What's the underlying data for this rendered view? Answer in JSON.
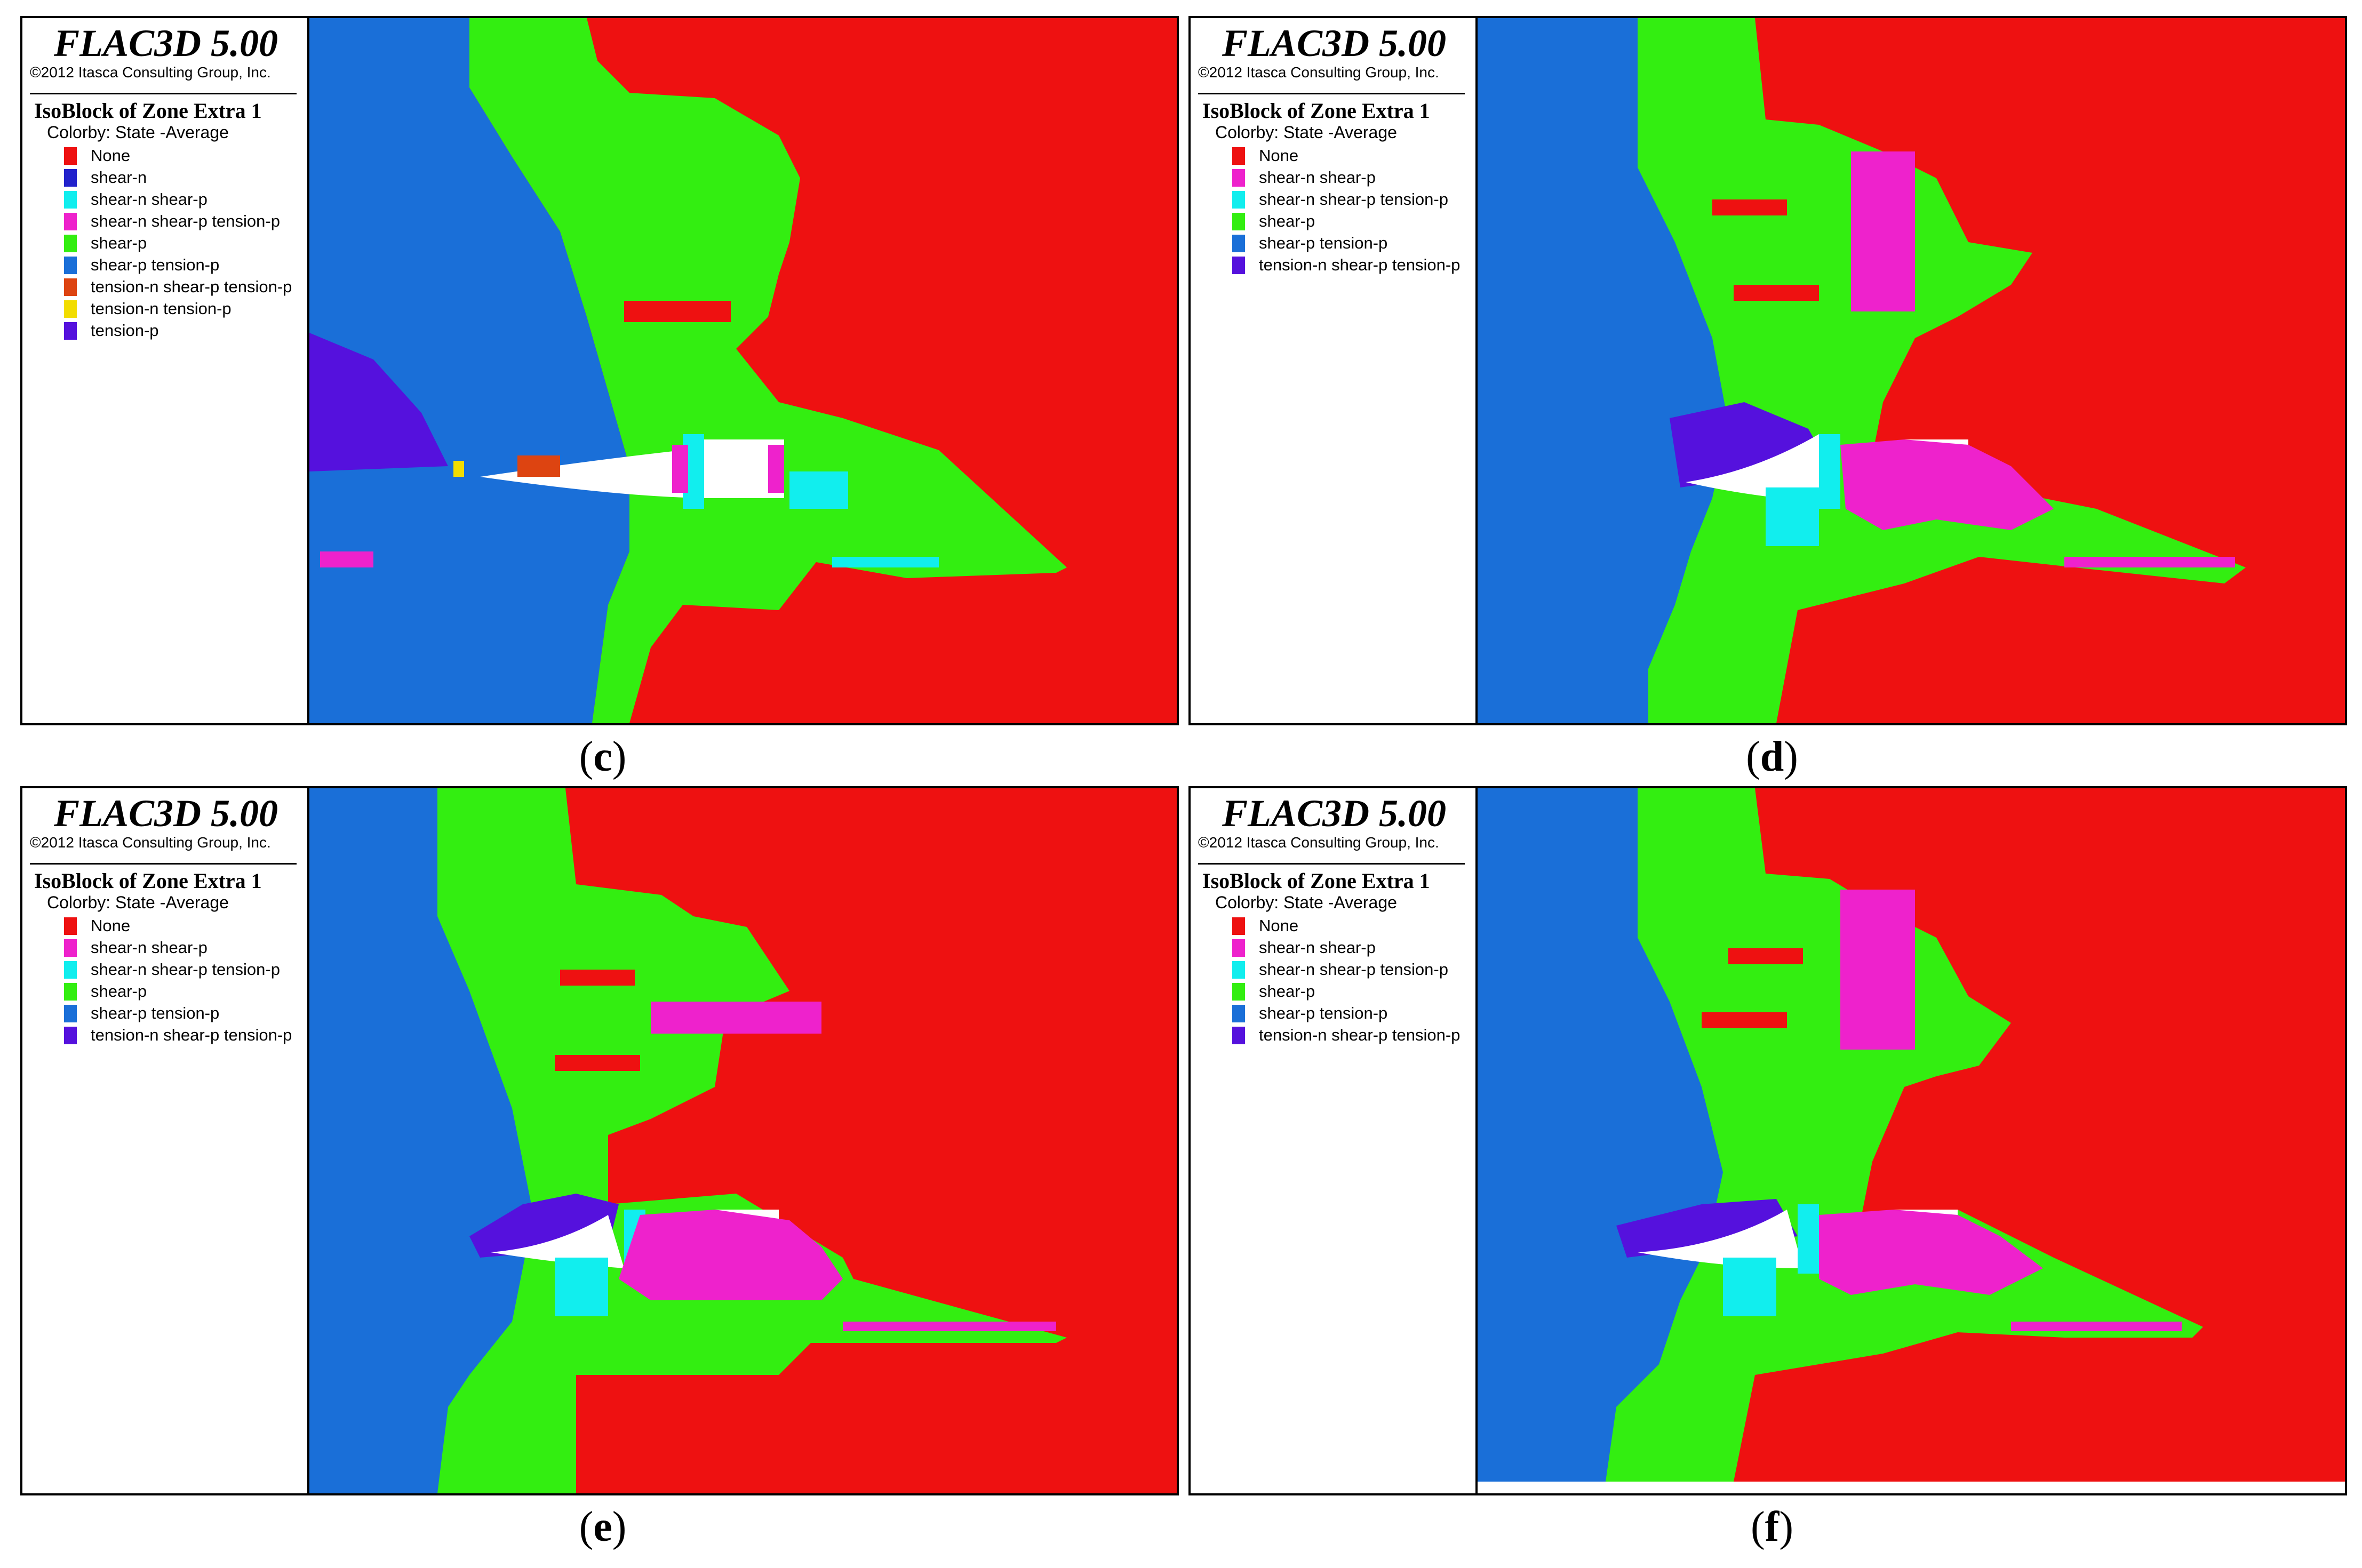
{
  "colors": {
    "none": "#ee1111",
    "shear_n": "#2222cc",
    "shear_n_shear_p": "#ee22cc",
    "shear_n_shear_p_tension_p": "#11eeee",
    "shear_p": "#33ee11",
    "shear_p_tension_p": "#1a6fd8",
    "tension_n_shear_p_tension_p": "#5511dd",
    "tension_n_tension_p": "#f2dd00",
    "tension_p": "#5511dd",
    "tension_n_shear_p_tension_p_c": "#dd4411"
  },
  "panels": [
    {
      "app_title": "FLAC3D 5.00",
      "copyright": "©2012 Itasca Consulting Group, Inc.",
      "plot_title": "IsoBlock of Zone Extra 1",
      "colorby": "Colorby: State  -Average",
      "caption_open": "(",
      "caption_letter": "c",
      "caption_close": ")",
      "legend": [
        {
          "label": "None",
          "color": "#ee1111"
        },
        {
          "label": "shear-n",
          "color": "#2222cc"
        },
        {
          "label": "shear-n shear-p",
          "color": "#11eeee"
        },
        {
          "label": "shear-n shear-p tension-p",
          "color": "#ee22cc"
        },
        {
          "label": "shear-p",
          "color": "#33ee11"
        },
        {
          "label": "shear-p tension-p",
          "color": "#1a6fd8"
        },
        {
          "label": "tension-n shear-p tension-p",
          "color": "#dd4411"
        },
        {
          "label": "tension-n tension-p",
          "color": "#f2dd00"
        },
        {
          "label": "tension-p",
          "color": "#5511dd"
        }
      ]
    },
    {
      "app_title": "FLAC3D 5.00",
      "copyright": "©2012 Itasca Consulting Group, Inc.",
      "plot_title": "IsoBlock of Zone Extra 1",
      "colorby": "Colorby: State  -Average",
      "caption_open": "(",
      "caption_letter": "d",
      "caption_close": ")",
      "legend": [
        {
          "label": "None",
          "color": "#ee1111"
        },
        {
          "label": "shear-n shear-p",
          "color": "#ee22cc"
        },
        {
          "label": "shear-n shear-p tension-p",
          "color": "#11eeee"
        },
        {
          "label": "shear-p",
          "color": "#33ee11"
        },
        {
          "label": "shear-p tension-p",
          "color": "#1a6fd8"
        },
        {
          "label": "tension-n shear-p tension-p",
          "color": "#5511dd"
        }
      ]
    },
    {
      "app_title": "FLAC3D 5.00",
      "copyright": "©2012 Itasca Consulting Group, Inc.",
      "plot_title": "IsoBlock of Zone Extra 1",
      "colorby": "Colorby: State  -Average",
      "caption_open": "(",
      "caption_letter": "e",
      "caption_close": ")",
      "legend": [
        {
          "label": "None",
          "color": "#ee1111"
        },
        {
          "label": "shear-n shear-p",
          "color": "#ee22cc"
        },
        {
          "label": "shear-n shear-p tension-p",
          "color": "#11eeee"
        },
        {
          "label": "shear-p",
          "color": "#33ee11"
        },
        {
          "label": "shear-p tension-p",
          "color": "#1a6fd8"
        },
        {
          "label": "tension-n shear-p tension-p",
          "color": "#5511dd"
        }
      ]
    },
    {
      "app_title": "FLAC3D 5.00",
      "copyright": "©2012 Itasca Consulting Group, Inc.",
      "plot_title": "IsoBlock of Zone Extra 1",
      "colorby": "Colorby: State  -Average",
      "caption_open": "(",
      "caption_letter": "f",
      "caption_close": ")",
      "legend": [
        {
          "label": "None",
          "color": "#ee1111"
        },
        {
          "label": "shear-n shear-p",
          "color": "#ee22cc"
        },
        {
          "label": "shear-n shear-p tension-p",
          "color": "#11eeee"
        },
        {
          "label": "shear-p",
          "color": "#33ee11"
        },
        {
          "label": "shear-p tension-p",
          "color": "#1a6fd8"
        },
        {
          "label": "tension-n shear-p tension-p",
          "color": "#5511dd"
        }
      ]
    }
  ]
}
